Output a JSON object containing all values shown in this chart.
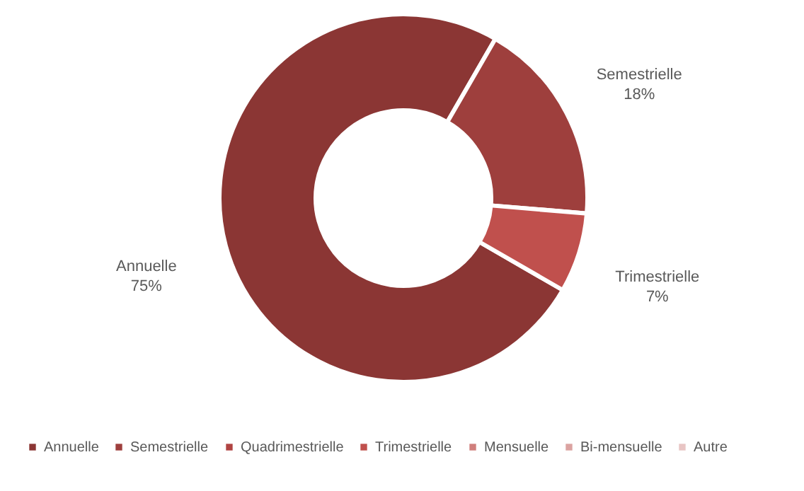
{
  "chart_data": {
    "type": "donut",
    "categories": [
      "Annuelle",
      "Semestrielle",
      "Quadrimestrielle",
      "Trimestrielle",
      "Mensuelle",
      "Bi-mensuelle",
      "Autre"
    ],
    "values": [
      75,
      18,
      0,
      7,
      0,
      0,
      0
    ],
    "colors": [
      "#8b3634",
      "#9e3f3d",
      "#b04442",
      "#c0504d",
      "#d07f7c",
      "#dba3a1",
      "#e8c5c4"
    ],
    "value_labels": [
      "75%",
      "18%",
      null,
      "7%",
      null,
      null,
      null
    ],
    "legend": "bottom"
  }
}
